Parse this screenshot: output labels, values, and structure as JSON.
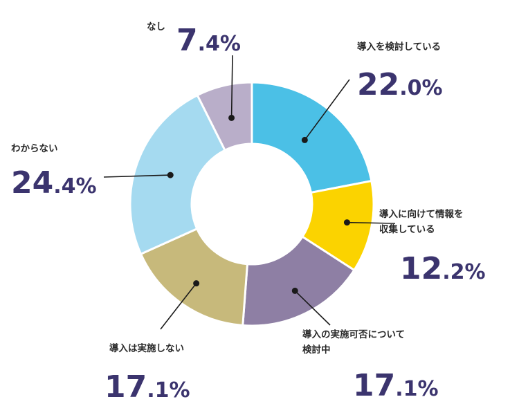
{
  "chart_data": {
    "type": "pie",
    "donut": true,
    "unit": "%",
    "slices": [
      {
        "key": "considering",
        "label_lines": [
          "導入を検討している"
        ],
        "int_part": "22",
        "dec_part": ".0",
        "value": 22.0,
        "color": "#4bc0e6"
      },
      {
        "key": "collecting",
        "label_lines": [
          "導入に向けて情報を",
          "収集している"
        ],
        "int_part": "12",
        "dec_part": ".2",
        "value": 12.2,
        "color": "#fbd300"
      },
      {
        "key": "evaluating",
        "label_lines": [
          "導入の実施可否について",
          "検討中"
        ],
        "int_part": "17",
        "dec_part": ".1",
        "value": 17.1,
        "color": "#8e7fa4"
      },
      {
        "key": "not-implementing",
        "label_lines": [
          "導入は実施しない"
        ],
        "int_part": "17",
        "dec_part": ".1",
        "value": 17.1,
        "color": "#c7b97b"
      },
      {
        "key": "unknown",
        "label_lines": [
          "わからない"
        ],
        "int_part": "24",
        "dec_part": ".4",
        "value": 24.4,
        "color": "#a5daf0"
      },
      {
        "key": "none",
        "label_lines": [
          "なし"
        ],
        "int_part": "7",
        "dec_part": ".4",
        "value": 7.4,
        "color": "#b9aec9"
      }
    ]
  }
}
